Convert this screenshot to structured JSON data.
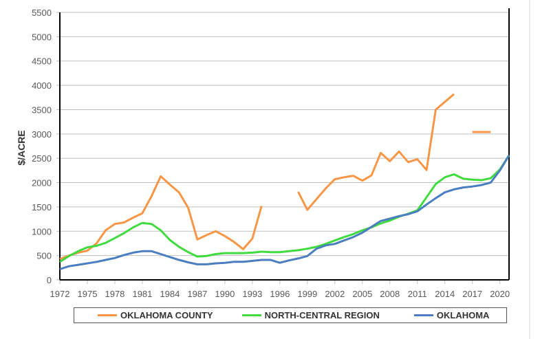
{
  "chart_data": {
    "type": "line",
    "title": "",
    "xlabel": "",
    "ylabel": "$/ACRE",
    "ylim": [
      0,
      5500
    ],
    "yticks": [
      0,
      500,
      1000,
      1500,
      2000,
      2500,
      3000,
      3500,
      4000,
      4500,
      5000,
      5500
    ],
    "xtick_labels": [
      "1972",
      "1975",
      "1978",
      "1981",
      "1984",
      "1987",
      "1990",
      "1993",
      "1996",
      "1999",
      "2002",
      "2005",
      "2008",
      "2011",
      "2014",
      "2017",
      "2020"
    ],
    "x": [
      1972,
      1973,
      1974,
      1975,
      1976,
      1977,
      1978,
      1979,
      1980,
      1981,
      1982,
      1983,
      1984,
      1985,
      1986,
      1987,
      1988,
      1989,
      1990,
      1991,
      1992,
      1993,
      1994,
      1995,
      1996,
      1997,
      1998,
      1999,
      2000,
      2001,
      2002,
      2003,
      2004,
      2005,
      2006,
      2007,
      2008,
      2009,
      2010,
      2011,
      2012,
      2013,
      2014,
      2015,
      2016,
      2017,
      2018,
      2019,
      2020,
      2021
    ],
    "grid": true,
    "legend": "bottom",
    "series": [
      {
        "name": "OKLAHOMA COUNTY",
        "color": "#F79646",
        "values": [
          430,
          500,
          560,
          600,
          750,
          1020,
          1150,
          1180,
          1280,
          1370,
          1720,
          2130,
          1960,
          1800,
          1480,
          830,
          920,
          1000,
          900,
          780,
          630,
          850,
          1520,
          null,
          null,
          null,
          1810,
          1440,
          1660,
          1880,
          2070,
          2110,
          2140,
          2040,
          2150,
          2610,
          2440,
          2640,
          2420,
          2480,
          2260,
          3500,
          3660,
          3820,
          null,
          3040,
          3040,
          3040,
          null,
          null
        ]
      },
      {
        "name": "NORTH-CENTRAL REGION",
        "color": "#3FDB3F",
        "values": [
          370,
          490,
          590,
          670,
          700,
          760,
          860,
          960,
          1080,
          1170,
          1150,
          1020,
          820,
          680,
          570,
          480,
          490,
          530,
          550,
          550,
          550,
          560,
          580,
          570,
          570,
          590,
          610,
          640,
          680,
          740,
          810,
          880,
          940,
          1020,
          1080,
          1160,
          1220,
          1300,
          1360,
          1430,
          1700,
          1970,
          2110,
          2170,
          2080,
          2060,
          2050,
          2090,
          2270,
          2560
        ]
      },
      {
        "name": "OKLAHOMA",
        "color": "#4A7EC1",
        "values": [
          220,
          280,
          310,
          340,
          370,
          410,
          450,
          510,
          560,
          590,
          590,
          530,
          470,
          410,
          360,
          320,
          320,
          340,
          350,
          370,
          370,
          390,
          410,
          410,
          350,
          400,
          440,
          490,
          640,
          710,
          740,
          810,
          880,
          970,
          1090,
          1210,
          1260,
          1310,
          1350,
          1410,
          1550,
          1680,
          1800,
          1860,
          1900,
          1920,
          1950,
          2000,
          2250,
          2560
        ]
      }
    ]
  }
}
